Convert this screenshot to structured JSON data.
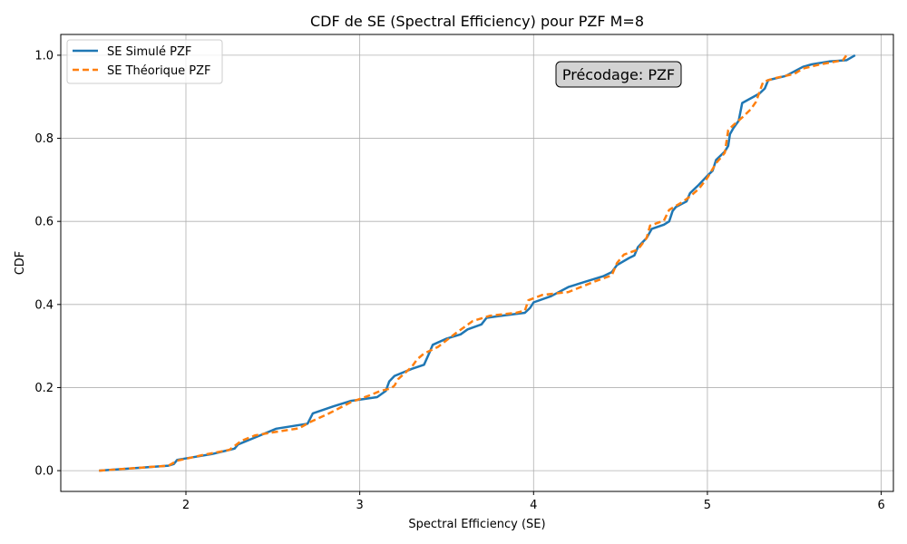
{
  "chart_data": {
    "type": "line",
    "title": "CDF de SE (Spectral Efficiency) pour PZF M=8",
    "xlabel": "Spectral Efficiency (SE)",
    "ylabel": "CDF",
    "xlim": [
      1.28,
      6.07
    ],
    "ylim": [
      -0.05,
      1.05
    ],
    "xticks": [
      "2",
      "3",
      "4",
      "5",
      "6"
    ],
    "yticks": [
      "0.0",
      "0.2",
      "0.4",
      "0.6",
      "0.8",
      "1.0"
    ],
    "grid": true,
    "legend_position": "top-left",
    "annotation": "Précodage: PZF",
    "series": [
      {
        "name": "SE Simulé PZF",
        "color": "#1f77b4",
        "style": "solid",
        "x": [
          1.5,
          1.9,
          1.93,
          1.95,
          2.15,
          2.28,
          2.3,
          2.4,
          2.52,
          2.7,
          2.73,
          2.85,
          2.95,
          3.1,
          3.15,
          3.17,
          3.2,
          3.3,
          3.37,
          3.4,
          3.42,
          3.5,
          3.58,
          3.62,
          3.7,
          3.73,
          3.8,
          3.95,
          3.98,
          4.0,
          4.1,
          4.2,
          4.3,
          4.4,
          4.45,
          4.48,
          4.55,
          4.58,
          4.6,
          4.65,
          4.68,
          4.75,
          4.78,
          4.8,
          4.82,
          4.88,
          4.9,
          4.95,
          5.0,
          5.03,
          5.05,
          5.1,
          5.12,
          5.13,
          5.15,
          5.18,
          5.2,
          5.3,
          5.33,
          5.35,
          5.45,
          5.55,
          5.6,
          5.7,
          5.8,
          5.85
        ],
        "y": [
          0.0,
          0.012,
          0.016,
          0.026,
          0.04,
          0.053,
          0.063,
          0.08,
          0.101,
          0.113,
          0.138,
          0.155,
          0.168,
          0.177,
          0.192,
          0.215,
          0.228,
          0.245,
          0.255,
          0.283,
          0.303,
          0.318,
          0.328,
          0.34,
          0.352,
          0.368,
          0.372,
          0.38,
          0.392,
          0.405,
          0.42,
          0.442,
          0.455,
          0.468,
          0.478,
          0.495,
          0.512,
          0.518,
          0.538,
          0.56,
          0.582,
          0.592,
          0.6,
          0.625,
          0.635,
          0.648,
          0.668,
          0.688,
          0.71,
          0.722,
          0.748,
          0.768,
          0.782,
          0.81,
          0.825,
          0.842,
          0.885,
          0.908,
          0.92,
          0.94,
          0.95,
          0.972,
          0.978,
          0.985,
          0.988,
          1.0
        ]
      },
      {
        "name": "SE Théorique PZF",
        "color": "#ff7f0e",
        "style": "dashed",
        "x": [
          1.5,
          1.9,
          1.95,
          2.1,
          2.25,
          2.32,
          2.4,
          2.5,
          2.65,
          2.72,
          2.82,
          2.95,
          3.05,
          3.12,
          3.18,
          3.2,
          3.22,
          3.3,
          3.33,
          3.37,
          3.45,
          3.55,
          3.65,
          3.75,
          3.9,
          3.95,
          3.97,
          4.05,
          4.2,
          4.35,
          4.45,
          4.48,
          4.52,
          4.6,
          4.65,
          4.67,
          4.75,
          4.78,
          4.85,
          4.9,
          4.95,
          5.0,
          5.05,
          5.1,
          5.12,
          5.15,
          5.2,
          5.25,
          5.28,
          5.3,
          5.32,
          5.35,
          5.4,
          5.5,
          5.55,
          5.65,
          5.78,
          5.8
        ],
        "y": [
          0.0,
          0.012,
          0.024,
          0.038,
          0.05,
          0.072,
          0.085,
          0.092,
          0.102,
          0.118,
          0.137,
          0.165,
          0.18,
          0.192,
          0.198,
          0.205,
          0.22,
          0.25,
          0.268,
          0.282,
          0.298,
          0.33,
          0.36,
          0.373,
          0.38,
          0.385,
          0.41,
          0.423,
          0.43,
          0.455,
          0.47,
          0.5,
          0.52,
          0.532,
          0.56,
          0.59,
          0.602,
          0.628,
          0.645,
          0.66,
          0.678,
          0.705,
          0.74,
          0.765,
          0.82,
          0.832,
          0.85,
          0.87,
          0.888,
          0.912,
          0.935,
          0.94,
          0.946,
          0.955,
          0.968,
          0.978,
          0.988,
          1.0
        ]
      }
    ]
  }
}
